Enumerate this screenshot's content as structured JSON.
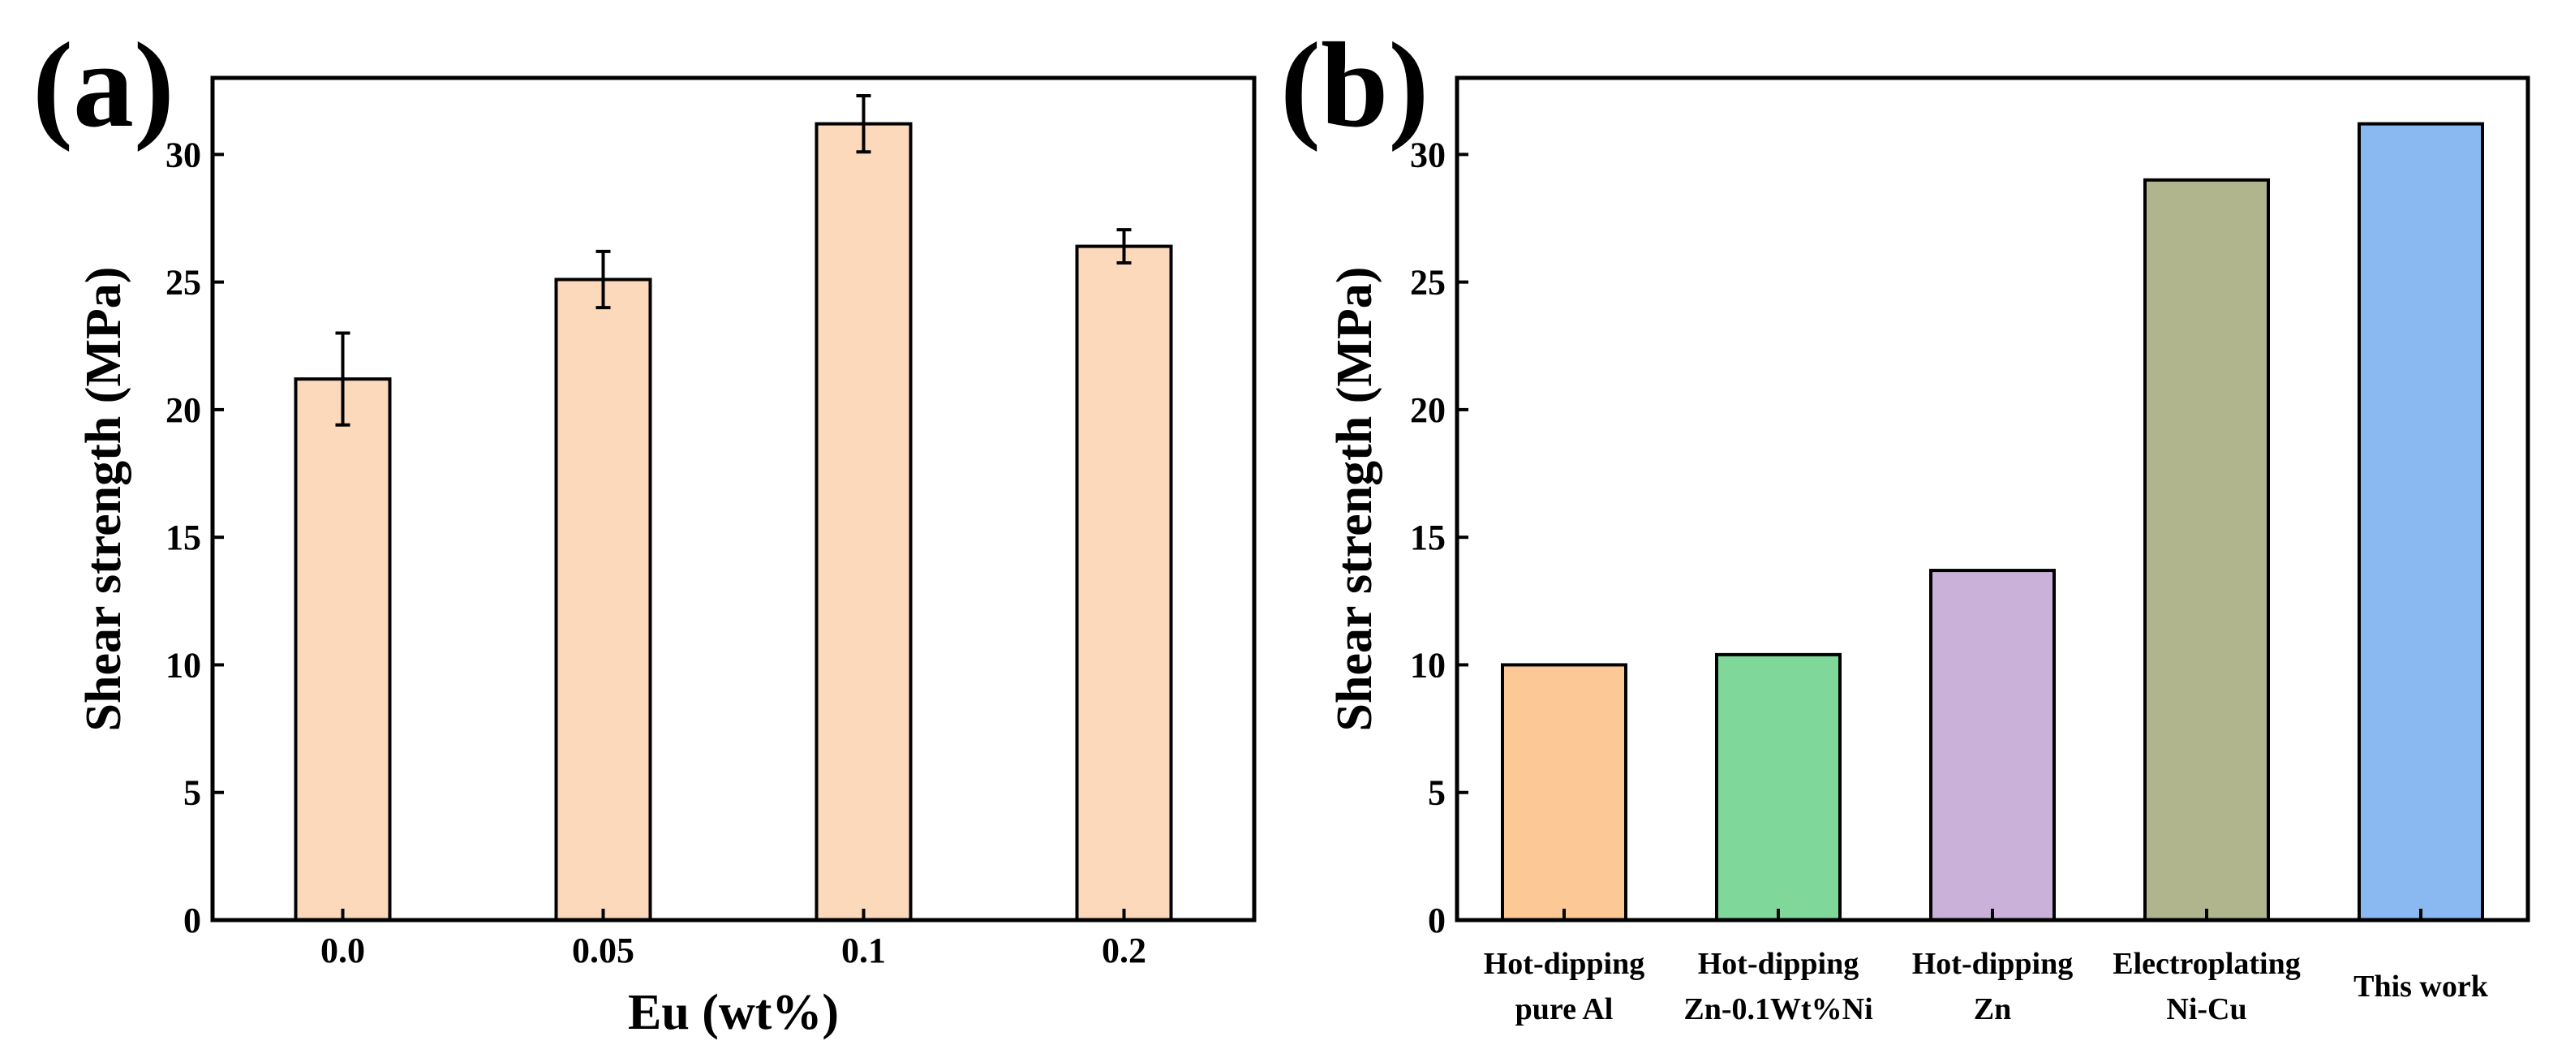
{
  "panels": {
    "a": {
      "label": "(a)"
    },
    "b": {
      "label": "(b)"
    }
  },
  "chart_data": [
    {
      "id": "a",
      "type": "bar",
      "title": "",
      "categories": [
        "0.0",
        "0.05",
        "0.1",
        "0.2"
      ],
      "values": [
        21.2,
        25.1,
        31.2,
        26.4
      ],
      "errors": [
        1.8,
        1.1,
        1.1,
        0.65
      ],
      "xlabel": "Eu (wt%)",
      "ylabel": "Shear strength (MPa)",
      "ylim": [
        0,
        33
      ],
      "yticks": [
        0,
        5,
        10,
        15,
        20,
        25,
        30
      ],
      "grid": false,
      "colors": [
        "#fdd9bb",
        "#fdd9bb",
        "#fdd9bb",
        "#fdd9bb"
      ]
    },
    {
      "id": "b",
      "type": "bar",
      "title": "",
      "categories": [
        [
          "Hot-dipping",
          "pure Al"
        ],
        [
          "Hot-dipping",
          "Zn-0.1Wt%Ni"
        ],
        [
          "Hot-dipping",
          "Zn"
        ],
        [
          "Electroplating",
          "Ni-Cu"
        ],
        [
          "This work"
        ]
      ],
      "values": [
        10.0,
        10.4,
        13.7,
        29.0,
        31.2
      ],
      "xlabel": "",
      "ylabel": "Shear strength (MPa)",
      "ylim": [
        0,
        33
      ],
      "yticks": [
        0,
        5,
        10,
        15,
        20,
        25,
        30
      ],
      "grid": false,
      "colors": [
        "#fcc896",
        "#7fd89a",
        "#c9b1d9",
        "#b0b58e",
        "#8ab8f0"
      ]
    }
  ]
}
